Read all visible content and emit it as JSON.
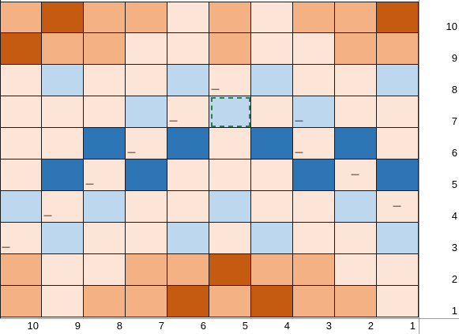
{
  "palette": {
    "p": "#FCE4D6",
    "o": "#F4B183",
    "d": "#C55A11",
    "l": "#BDD7EE",
    "b": "#2E75B6"
  },
  "board": {
    "rows": [
      [
        "o",
        "d",
        "o",
        "o",
        "p",
        "o",
        "p",
        "o",
        "o",
        "d"
      ],
      [
        "d",
        "o",
        "o",
        "p",
        "p",
        "o",
        "p",
        "p",
        "o",
        "o"
      ],
      [
        "p",
        "l",
        "p",
        "p",
        "l",
        "p",
        "l",
        "p",
        "p",
        "l"
      ],
      [
        "p",
        "p",
        "p",
        "l",
        "p",
        "l",
        "p",
        "l",
        "p",
        "p"
      ],
      [
        "p",
        "p",
        "b",
        "p",
        "b",
        "p",
        "b",
        "p",
        "b",
        "p"
      ],
      [
        "p",
        "b",
        "p",
        "b",
        "p",
        "p",
        "p",
        "b",
        "p",
        "b"
      ],
      [
        "l",
        "p",
        "l",
        "p",
        "p",
        "l",
        "p",
        "p",
        "l",
        "p"
      ],
      [
        "p",
        "l",
        "p",
        "p",
        "l",
        "p",
        "l",
        "p",
        "p",
        "l"
      ],
      [
        "o",
        "p",
        "p",
        "o",
        "o",
        "d",
        "o",
        "o",
        "p",
        "p"
      ],
      [
        "o",
        "p",
        "o",
        "o",
        "d",
        "o",
        "d",
        "o",
        "o",
        "p"
      ]
    ],
    "marks": [
      {
        "row": 2,
        "col": 5,
        "text": "—",
        "pos": "bottom-left"
      },
      {
        "row": 3,
        "col": 4,
        "text": "—",
        "pos": "bottom-left"
      },
      {
        "row": 3,
        "col": 7,
        "text": "—",
        "pos": "bottom-left"
      },
      {
        "row": 4,
        "col": 3,
        "text": "—",
        "pos": "bottom-left"
      },
      {
        "row": 4,
        "col": 7,
        "text": "—",
        "pos": "bottom-left"
      },
      {
        "row": 5,
        "col": 2,
        "text": "—",
        "pos": "bottom-left"
      },
      {
        "row": 5,
        "col": 8,
        "text": "—",
        "pos": "center"
      },
      {
        "row": 6,
        "col": 1,
        "text": "—",
        "pos": "bottom-left"
      },
      {
        "row": 6,
        "col": 9,
        "text": "—",
        "pos": "center"
      },
      {
        "row": 7,
        "col": 0,
        "text": "—",
        "pos": "bottom-left"
      }
    ],
    "selected": {
      "row": 3,
      "col": 5
    }
  },
  "row_labels": [
    "10",
    "9",
    "8",
    "7",
    "6",
    "5",
    "4",
    "3",
    "2",
    "1"
  ],
  "column_labels": [
    "10",
    "9",
    "8",
    "7",
    "6",
    "5",
    "4",
    "3",
    "2",
    "1"
  ]
}
